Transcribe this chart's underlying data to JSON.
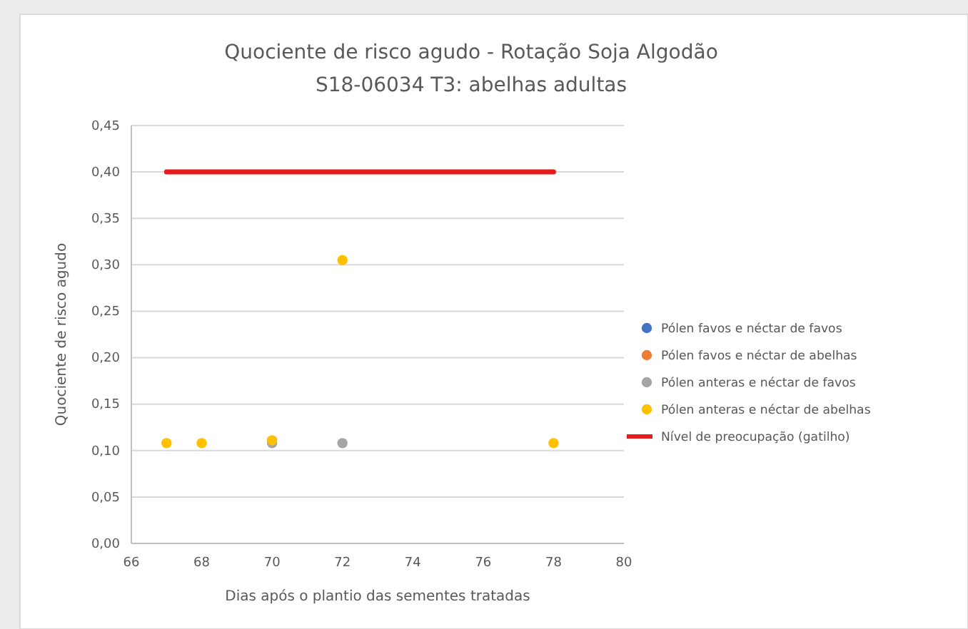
{
  "chart_data": {
    "type": "scatter",
    "title": "Quociente de risco agudo - Rotação Soja Algodão",
    "subtitle": "S18-06034 T3: abelhas adultas",
    "xlabel": "Dias após o plantio das sementes tratadas",
    "ylabel": "Quociente de risco agudo",
    "x": [
      67,
      68,
      70,
      72,
      78
    ],
    "series": [
      {
        "name": "Pólen favos e néctar de favos",
        "color": "#4472c4",
        "values": [
          null,
          null,
          null,
          null,
          null
        ]
      },
      {
        "name": "Pólen favos e néctar de abelhas",
        "color": "#ed7d31",
        "values": [
          null,
          null,
          null,
          null,
          null
        ]
      },
      {
        "name": "Pólen anteras e néctar de favos",
        "color": "#a5a5a5",
        "values": [
          null,
          null,
          0.108,
          0.108,
          null
        ]
      },
      {
        "name": "Pólen anteras e néctar de abelhas",
        "color": "#ffc000",
        "values": [
          0.108,
          0.108,
          0.111,
          0.305,
          0.108
        ]
      },
      {
        "name": "Nível de preocupação (gatilho)",
        "type": "line",
        "marker": "none",
        "color": "#e41a1c",
        "x": [
          67,
          78
        ],
        "values": [
          0.4,
          0.4
        ]
      }
    ],
    "xlim": [
      66,
      80
    ],
    "xticks": [
      66,
      68,
      70,
      72,
      74,
      76,
      78,
      80
    ],
    "ylim": [
      0,
      0.45
    ],
    "yticks": [
      {
        "value": 0,
        "label": "0,00"
      },
      {
        "value": 0.05,
        "label": "0,05"
      },
      {
        "value": 0.1,
        "label": "0,10"
      },
      {
        "value": 0.15,
        "label": "0,15"
      },
      {
        "value": 0.2,
        "label": "0,20"
      },
      {
        "value": 0.25,
        "label": "0,25"
      },
      {
        "value": 0.3,
        "label": "0,30"
      },
      {
        "value": 0.35,
        "label": "0,35"
      },
      {
        "value": 0.4,
        "label": "0,40"
      },
      {
        "value": 0.45,
        "label": "0,45"
      }
    ],
    "grid": "y",
    "legend": "right",
    "marker": "circle"
  }
}
